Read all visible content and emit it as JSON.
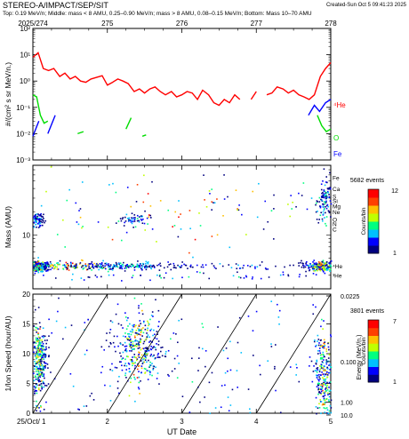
{
  "header": {
    "title": "STEREO-A/IMPACT/SEP/SIT",
    "created": "Created-Sun Oct  5 09:41:23 2025",
    "subtitle": "Top: 0.19 MeV/n; Middle: mass < 8 AMU, 0.25–0.90 MeV/n; mass > 8 AMU, 0.08–0.15 MeV/n; Bottom: Mass 10–70 AMU"
  },
  "top_axis": {
    "ticks": [
      "2025/274",
      "275",
      "276",
      "277",
      "278"
    ]
  },
  "bottom_axis": {
    "ticks": [
      "25/Oct/ 1",
      "2",
      "3",
      "4",
      "5"
    ],
    "label": "UT Date"
  },
  "colors": {
    "he4": "#ff0000",
    "o": "#00dd00",
    "fe": "#0000ff",
    "colorbar": [
      "#000080",
      "#0000ff",
      "#00c0ff",
      "#00ff80",
      "#c0ff00",
      "#ffc000",
      "#ff4000",
      "#ff0000"
    ]
  },
  "chart_data": [
    {
      "type": "line",
      "ylabel": "#/(cm² s sr MeV/n.)",
      "ylog": true,
      "ylim": [
        0.001,
        100
      ],
      "ytick_labels": [
        "10⁻³",
        "10⁻²",
        "10⁻¹",
        "10⁰",
        "10¹",
        "10²"
      ],
      "xlim": [
        1,
        5
      ],
      "series": [
        {
          "name": "⁴He",
          "color": "#ff0000",
          "x": [
            1.0,
            1.07,
            1.14,
            1.21,
            1.28,
            1.36,
            1.43,
            1.5,
            1.57,
            1.64,
            1.71,
            1.78,
            1.86,
            1.93,
            2.0,
            2.07,
            2.14,
            2.21,
            2.28,
            2.36,
            2.43,
            2.5,
            2.57,
            2.64,
            2.71,
            2.78,
            2.86,
            2.93,
            3.0,
            3.07,
            3.14,
            3.21,
            3.28,
            3.36,
            3.43,
            3.5,
            3.57,
            3.64,
            3.71,
            3.78,
            3.86,
            3.93,
            4.0,
            4.07,
            4.14,
            4.21,
            4.28,
            4.36,
            4.43,
            4.5,
            4.57,
            4.64,
            4.71,
            4.78,
            4.86,
            4.93,
            5.0
          ],
          "y": [
            8,
            12,
            3,
            2.5,
            3,
            1.5,
            2,
            1.2,
            1.5,
            1,
            0.9,
            1.2,
            1.4,
            1.6,
            0.7,
            0.9,
            1.2,
            1,
            0.8,
            0.4,
            0.5,
            0.35,
            0.5,
            0.6,
            0.4,
            0.3,
            0.4,
            0.25,
            0.3,
            0.4,
            0.35,
            0.2,
            0.45,
            0.3,
            0.15,
            0.12,
            0.2,
            0.15,
            0.3,
            0.2,
            null,
            0.2,
            0.4,
            null,
            0.3,
            0.35,
            0.6,
            0.5,
            0.35,
            0.45,
            0.3,
            0.25,
            0.2,
            0.3,
            1.5,
            3,
            5
          ]
        },
        {
          "name": "O",
          "color": "#00dd00",
          "x": [
            1.0,
            1.05,
            1.1,
            1.15,
            1.2,
            null,
            1.6,
            1.68,
            null,
            2.25,
            2.32,
            null,
            2.47,
            2.52,
            null,
            4.82,
            4.88,
            4.94,
            5.0
          ],
          "y": [
            0.3,
            0.25,
            0.05,
            0.025,
            0.03,
            null,
            0.01,
            0.012,
            null,
            0.015,
            0.04,
            null,
            0.008,
            0.009,
            null,
            0.05,
            0.02,
            0.012,
            0.015
          ]
        },
        {
          "name": "Fe",
          "color": "#0000ff",
          "x": [
            1.0,
            1.08,
            null,
            1.2,
            1.3,
            null,
            4.7,
            4.78,
            4.85,
            4.93,
            5.0
          ],
          "y": [
            0.008,
            0.03,
            null,
            0.01,
            0.05,
            null,
            0.05,
            0.12,
            0.07,
            0.15,
            0.2
          ]
        }
      ]
    },
    {
      "type": "scatter",
      "ylabel": "Mass (AMU)",
      "ylog": true,
      "ylim": [
        2,
        80
      ],
      "ytick_labels": [
        "10"
      ],
      "xlim": [
        1,
        5
      ],
      "species_labels": [
        "Fe",
        "Ca",
        "Si",
        "S",
        "Mg",
        "Ne",
        "C",
        "O",
        "N",
        "⁴He",
        "³He"
      ],
      "species_label_mass": [
        56,
        40,
        28,
        32,
        24,
        20,
        12,
        16,
        14,
        4,
        3
      ],
      "clusters": [
        {
          "x": 1.05,
          "xspread": 0.08,
          "mass": 4,
          "mspread": 0.08,
          "n": 260
        },
        {
          "x": 1.5,
          "xspread": 0.5,
          "mass": 4,
          "mspread": 0.07,
          "n": 200
        },
        {
          "x": 2.3,
          "xspread": 0.4,
          "mass": 4,
          "mspread": 0.06,
          "n": 120
        },
        {
          "x": 3.5,
          "xspread": 0.6,
          "mass": 4,
          "mspread": 0.06,
          "n": 60
        },
        {
          "x": 4.85,
          "xspread": 0.12,
          "mass": 4,
          "mspread": 0.08,
          "n": 200
        },
        {
          "x": 1.05,
          "xspread": 0.05,
          "mass": 16,
          "mspread": 0.1,
          "n": 90
        },
        {
          "x": 2.35,
          "xspread": 0.12,
          "mass": 16,
          "mspread": 0.08,
          "n": 50
        },
        {
          "x": 4.92,
          "xspread": 0.05,
          "mass": 30,
          "mspread": 0.3,
          "n": 110
        },
        {
          "x": 3.0,
          "xspread": 1.9,
          "mass": 20,
          "mspread": 0.6,
          "n": 180
        },
        {
          "x": 3.0,
          "xspread": 1.9,
          "mass": 3,
          "mspread": 0.06,
          "n": 70
        }
      ],
      "colorbar": {
        "title": "5682 events",
        "label": "Counts/bin",
        "ticks": [
          "12",
          "1"
        ],
        "range": [
          1,
          12
        ]
      }
    },
    {
      "type": "scatter",
      "ylabel": "1/Ion Speed (hour/AU)",
      "ylim": [
        0,
        20
      ],
      "ytick_labels": [
        "0",
        "5",
        "10",
        "15",
        "20"
      ],
      "xlim": [
        1,
        5
      ],
      "right_axis": {
        "label": "Energy (MeV/n.)",
        "ticks": [
          "0.0225",
          "0.100",
          "1.00",
          "10.0"
        ],
        "values": [
          0.0225,
          0.1,
          1.0,
          10.0
        ]
      },
      "velocity_dispersion_lines": [
        {
          "x0": 1.0,
          "x1": 2.0
        },
        {
          "x0": 2.0,
          "x1": 3.0
        },
        {
          "x0": 3.0,
          "x1": 4.0
        },
        {
          "x0": 4.0,
          "x1": 5.0
        }
      ],
      "clusters": [
        {
          "x": 1.08,
          "xspread": 0.05,
          "y": 9,
          "yspread": 3,
          "n": 300
        },
        {
          "x": 2.4,
          "xspread": 0.15,
          "y": 11,
          "yspread": 3,
          "n": 320
        },
        {
          "x": 4.9,
          "xspread": 0.07,
          "y": 6,
          "yspread": 4,
          "n": 280
        },
        {
          "x": 3.0,
          "xspread": 1.9,
          "y": 9,
          "yspread": 6,
          "n": 260
        }
      ],
      "colorbar": {
        "title": "3801 events",
        "label": "Counts/bin",
        "ticks": [
          "7",
          "1"
        ],
        "range": [
          1,
          7
        ]
      }
    }
  ]
}
